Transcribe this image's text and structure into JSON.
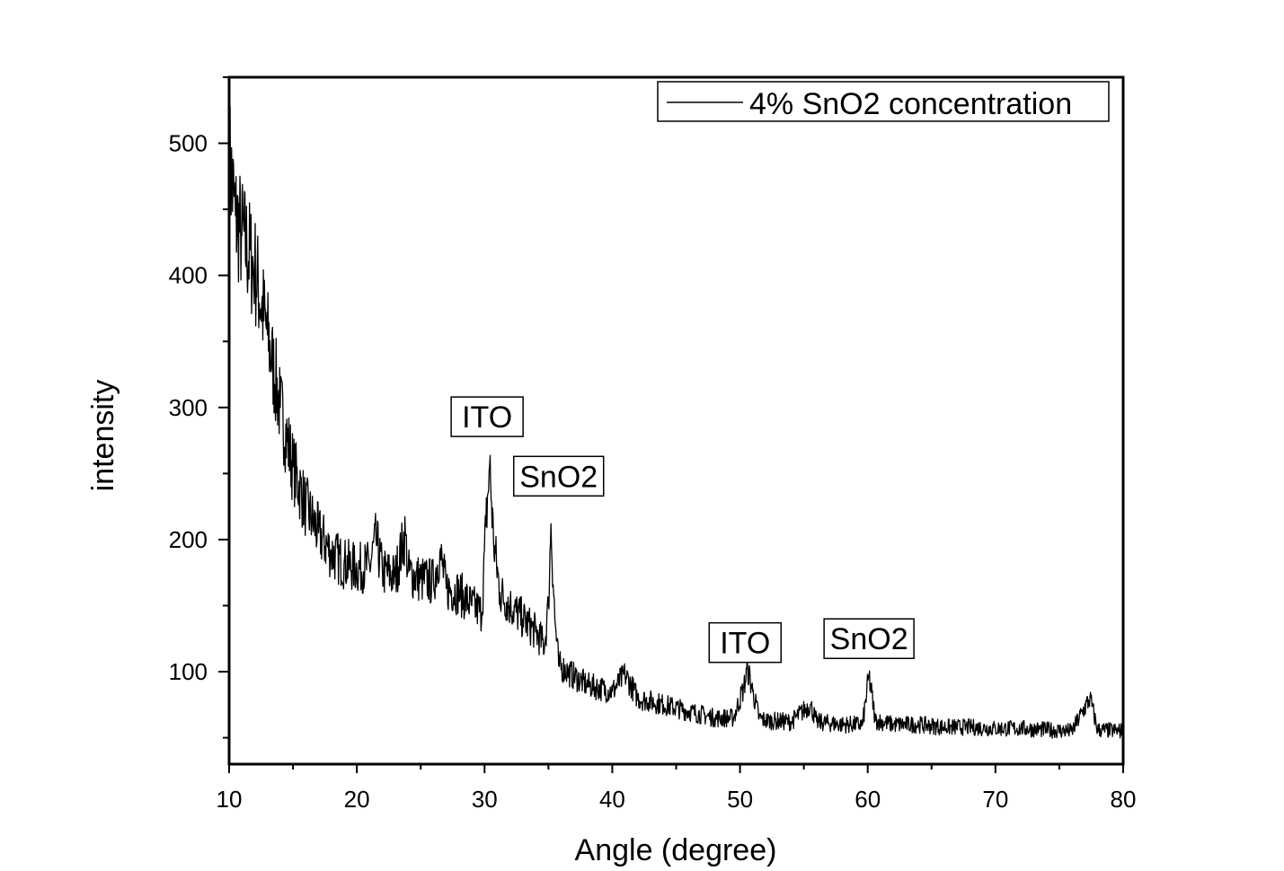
{
  "chart_data": {
    "type": "line",
    "title": "",
    "xlabel": "Angle (degree)",
    "ylabel": "intensity",
    "xlim": [
      10,
      80
    ],
    "ylim": [
      30,
      550
    ],
    "x_ticks": [
      10,
      20,
      30,
      40,
      50,
      60,
      70,
      80
    ],
    "x_tick_labels": [
      "10",
      "20",
      "30",
      "40",
      "50",
      "60",
      "70",
      "80"
    ],
    "y_ticks": [
      100,
      200,
      300,
      400,
      500
    ],
    "y_tick_labels": [
      "100",
      "200",
      "300",
      "400",
      "500"
    ],
    "grid": false,
    "legend": {
      "position": "top-right",
      "entries": [
        "4% SnO2 concentration"
      ]
    },
    "series": [
      {
        "name": "4% SnO2 concentration",
        "color": "#000000",
        "x": [
          10,
          10.5,
          11,
          12,
          13,
          14,
          15,
          16,
          17,
          18,
          19,
          20,
          21,
          21.5,
          22,
          23,
          23.8,
          24,
          25,
          26,
          26.5,
          27,
          28,
          29,
          29.8,
          30.1,
          30.4,
          30.7,
          31.2,
          32,
          33,
          34,
          34.7,
          35.0,
          35.2,
          35.5,
          35.8,
          36.5,
          38,
          40,
          41,
          42,
          44,
          46,
          48,
          49.5,
          50.3,
          50.6,
          51.0,
          51.5,
          52,
          54,
          55.5,
          56,
          58,
          59.6,
          60.1,
          60.6,
          62,
          64,
          66,
          68,
          70,
          72,
          74,
          76,
          77.4,
          78,
          80
        ],
        "y": [
          490,
          445,
          430,
          405,
          355,
          300,
          255,
          225,
          205,
          190,
          182,
          178,
          180,
          200,
          176,
          172,
          205,
          175,
          170,
          168,
          190,
          163,
          160,
          150,
          145,
          210,
          257,
          200,
          160,
          150,
          140,
          130,
          120,
          150,
          212,
          140,
          105,
          100,
          90,
          85,
          98,
          80,
          75,
          70,
          65,
          65,
          88,
          102,
          85,
          65,
          63,
          62,
          75,
          62,
          60,
          60,
          97,
          63,
          60,
          60,
          58,
          58,
          57,
          57,
          56,
          55,
          80,
          56,
          55
        ]
      }
    ],
    "annotations": [
      {
        "text": "ITO",
        "x": 30.2,
        "y": 293
      },
      {
        "text": "SnO2",
        "x": 35.8,
        "y": 248
      },
      {
        "text": "ITO",
        "x": 50.4,
        "y": 122
      },
      {
        "text": "SnO2",
        "x": 60.1,
        "y": 125
      }
    ]
  }
}
